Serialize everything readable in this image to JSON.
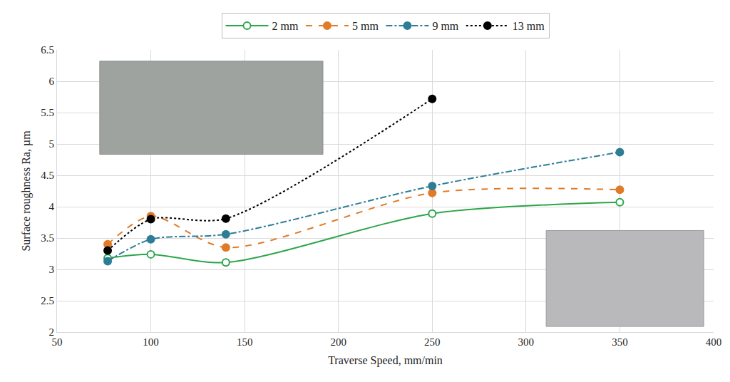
{
  "chart_data": {
    "type": "line",
    "x_label": "Traverse Speed, mm/min",
    "y_label": "Surface roughness Ra, µm",
    "x": [
      77,
      100,
      140,
      250,
      350
    ],
    "series": [
      {
        "name": "2 mm",
        "color": "#2ca64a",
        "marker": "circle-open",
        "line_style": "solid",
        "values": [
          3.18,
          3.24,
          3.11,
          3.89,
          4.07
        ]
      },
      {
        "name": "5 mm",
        "color": "#e07b28",
        "marker": "circle",
        "line_style": "dash",
        "values": [
          3.4,
          3.85,
          3.35,
          4.22,
          4.27
        ]
      },
      {
        "name": "9 mm",
        "color": "#2e7d96",
        "marker": "circle",
        "line_style": "dashdot",
        "values": [
          3.13,
          3.48,
          3.56,
          4.33,
          4.87
        ]
      },
      {
        "name": "13 mm",
        "color": "#000000",
        "marker": "circle",
        "line_style": "dot",
        "values": [
          3.3,
          3.8,
          3.81,
          5.72,
          null
        ]
      }
    ],
    "xlim": [
      50,
      400
    ],
    "xticks": [
      50,
      100,
      150,
      200,
      250,
      300,
      350,
      400
    ],
    "ylim": [
      2,
      6.5
    ],
    "yticks": [
      2,
      2.5,
      3,
      3.5,
      4,
      4.5,
      5,
      5.5,
      6,
      6.5
    ],
    "grid": true,
    "legend": "top"
  }
}
